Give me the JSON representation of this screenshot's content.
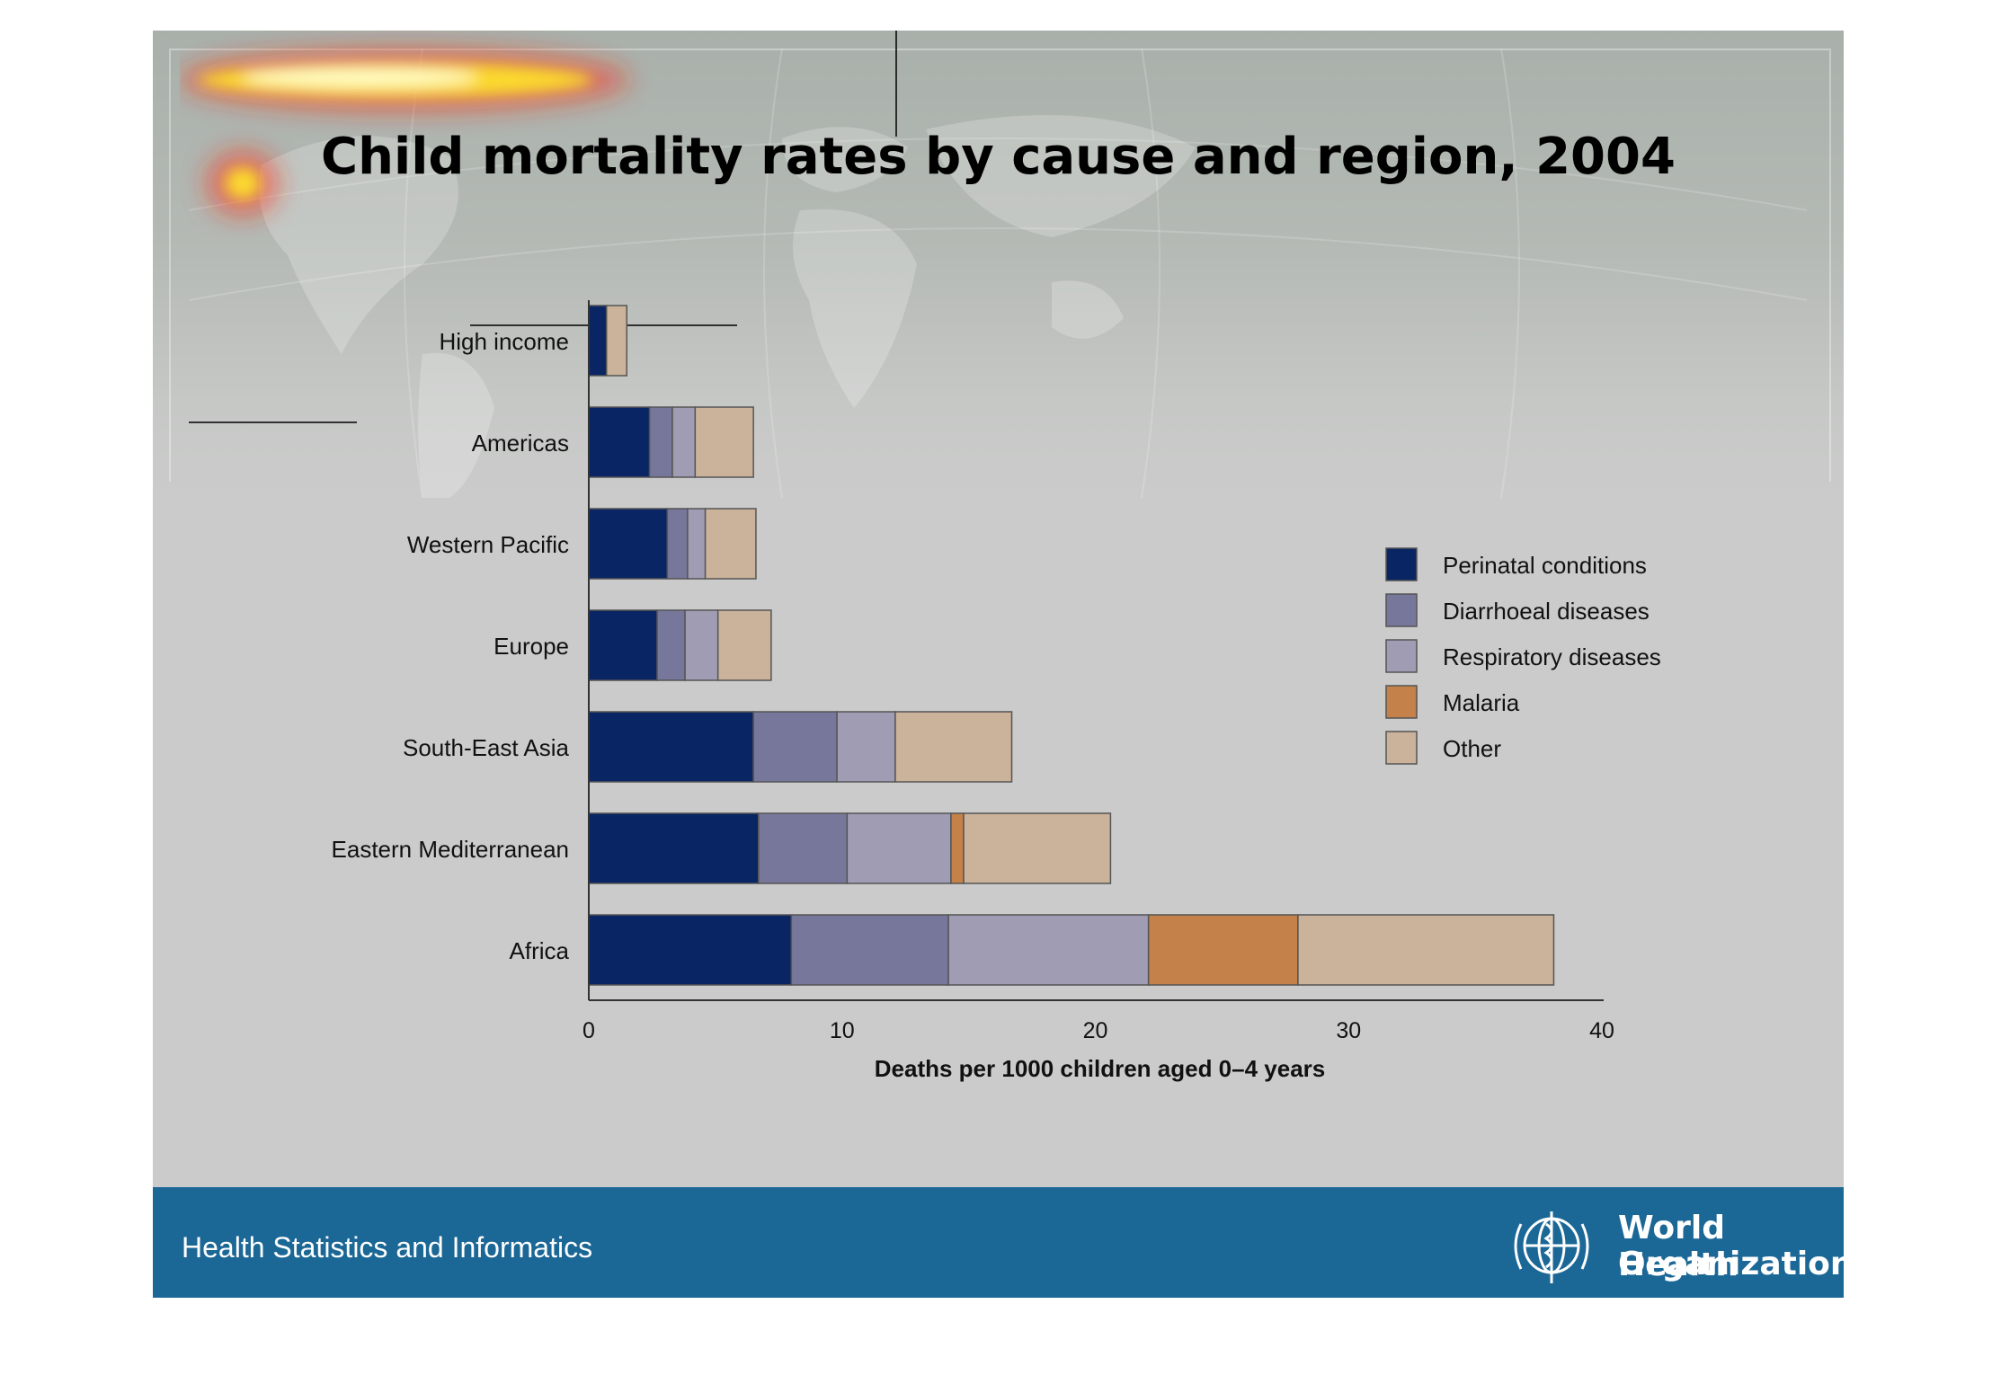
{
  "slide_title": "Child mortality rates by cause and region, 2004",
  "footer": {
    "department": "Health Statistics and Informatics",
    "org_line1": "World Health",
    "org_line2": "Organization"
  },
  "colors": {
    "slide_bg": "#cbcbcb",
    "footer_bg": "#1b6796",
    "Perinatal conditions": "#0a2563",
    "Diarrhoeal diseases": "#77779c",
    "Respiratory diseases": "#a09cb3",
    "Malaria": "#c4824a",
    "Other": "#cbb29a"
  },
  "chart_data": {
    "type": "bar",
    "orientation": "horizontal",
    "stacked": true,
    "categories": [
      "High income",
      "Americas",
      "Western Pacific",
      "Europe",
      "South-East Asia",
      "Eastern Mediterranean",
      "Africa"
    ],
    "series": [
      {
        "name": "Perinatal conditions",
        "values": [
          0.7,
          2.4,
          3.1,
          2.7,
          6.5,
          6.7,
          8.0
        ]
      },
      {
        "name": "Diarrhoeal diseases",
        "values": [
          0.0,
          0.9,
          0.8,
          1.1,
          3.3,
          3.5,
          6.2
        ]
      },
      {
        "name": "Respiratory diseases",
        "values": [
          0.0,
          0.9,
          0.7,
          1.3,
          2.3,
          4.1,
          7.9
        ]
      },
      {
        "name": "Malaria",
        "values": [
          0.0,
          0.0,
          0.0,
          0.0,
          0.0,
          0.5,
          5.9
        ]
      },
      {
        "name": "Other",
        "values": [
          0.8,
          2.3,
          2.0,
          2.1,
          4.6,
          5.8,
          10.1
        ]
      }
    ],
    "xlabel": "Deaths per 1000 children aged 0–4 years",
    "ylabel": "",
    "xlim": [
      0,
      40
    ],
    "xticks": [
      "0",
      "10",
      "20",
      "30",
      "40"
    ],
    "grid": false,
    "legend_position": "right"
  }
}
